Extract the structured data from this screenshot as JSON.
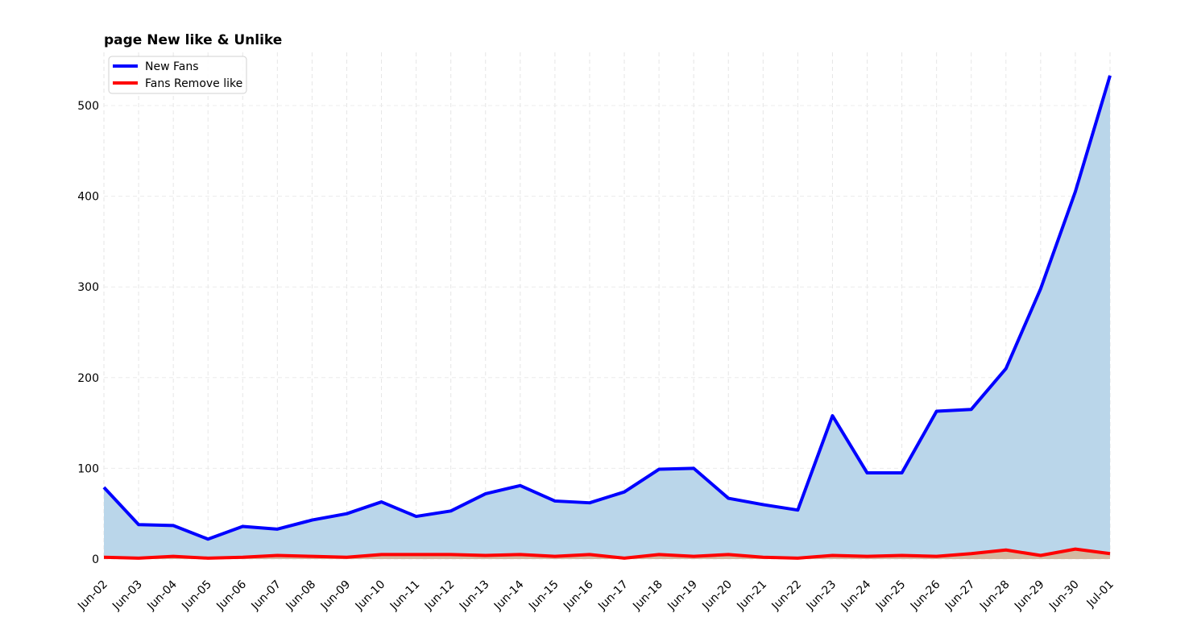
{
  "chart_data": {
    "type": "area",
    "title": "page New like & Unlike",
    "xlabel": "",
    "ylabel": "",
    "categories": [
      "Jun-02",
      "Jun-03",
      "Jun-04",
      "Jun-05",
      "Jun-06",
      "Jun-07",
      "Jun-08",
      "Jun-09",
      "Jun-10",
      "Jun-11",
      "Jun-12",
      "Jun-13",
      "Jun-14",
      "Jun-15",
      "Jun-16",
      "Jun-17",
      "Jun-18",
      "Jun-19",
      "Jun-20",
      "Jun-21",
      "Jun-22",
      "Jun-23",
      "Jun-24",
      "Jun-25",
      "Jun-26",
      "Jun-27",
      "Jun-28",
      "Jun-29",
      "Jun-30",
      "Jul-01"
    ],
    "series": [
      {
        "name": "New Fans",
        "line_color": "#0000ff",
        "fill_color": "#bad6ea",
        "values": [
          79,
          38,
          37,
          22,
          36,
          33,
          43,
          50,
          63,
          47,
          53,
          72,
          81,
          64,
          62,
          74,
          99,
          100,
          67,
          60,
          54,
          158,
          95,
          95,
          163,
          165,
          210,
          298,
          405,
          533
        ]
      },
      {
        "name": "Fans Remove like",
        "line_color": "#ff0000",
        "fill_color": "#d4b8a0",
        "values": [
          2,
          1,
          3,
          1,
          2,
          4,
          3,
          2,
          5,
          5,
          5,
          4,
          5,
          3,
          5,
          1,
          5,
          3,
          5,
          2,
          1,
          4,
          3,
          4,
          3,
          6,
          10,
          4,
          11,
          6
        ]
      }
    ],
    "yticks": [
      0,
      100,
      200,
      300,
      400,
      500
    ],
    "ylim": [
      0,
      560
    ],
    "grid": true,
    "legend_position": "top-left"
  }
}
